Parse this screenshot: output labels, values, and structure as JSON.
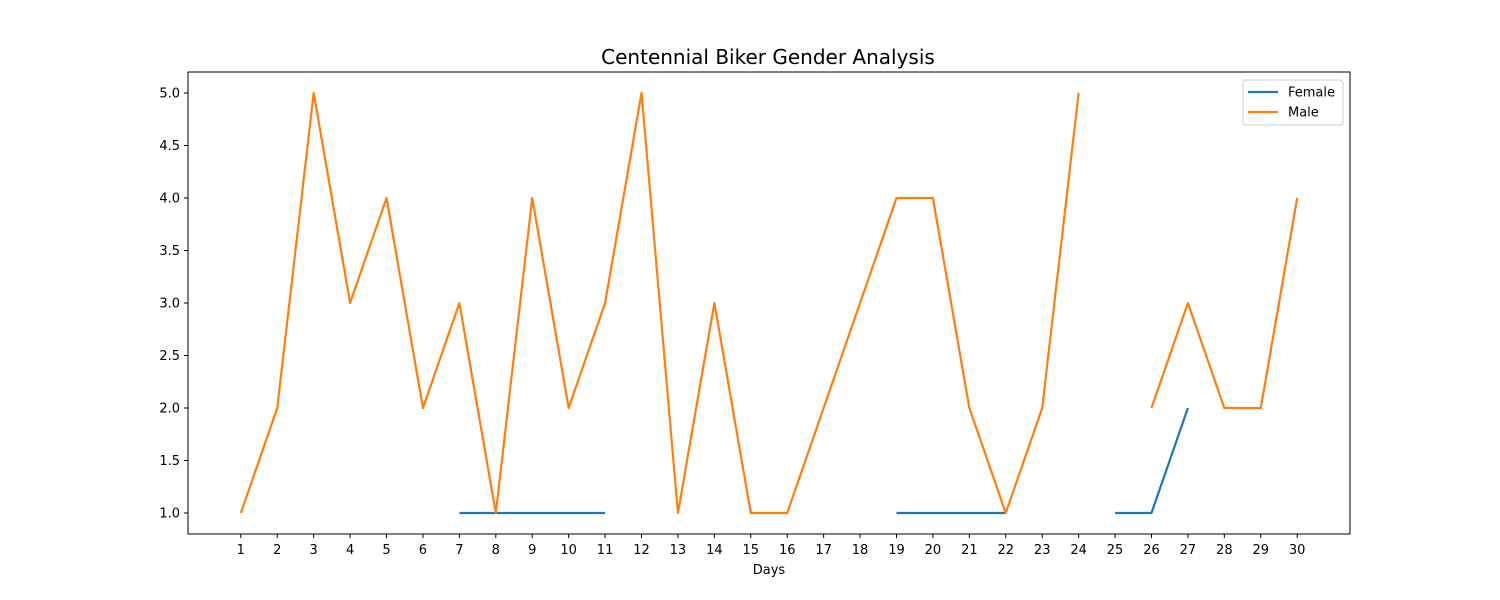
{
  "chart_data": {
    "type": "line",
    "title": "Centennial Biker Gender Analysis",
    "xlabel": "Days",
    "ylabel": "",
    "x_ticks": [
      1,
      2,
      3,
      4,
      5,
      6,
      7,
      8,
      9,
      10,
      11,
      12,
      13,
      14,
      15,
      16,
      17,
      18,
      19,
      20,
      21,
      22,
      23,
      24,
      25,
      26,
      27,
      28,
      29,
      30
    ],
    "y_ticks": [
      "1.0",
      "1.5",
      "2.0",
      "2.5",
      "3.0",
      "3.5",
      "4.0",
      "4.5",
      "5.0"
    ],
    "xlim": [
      -0.45,
      31.45
    ],
    "ylim": [
      0.8,
      5.2
    ],
    "grid": false,
    "legend_position": "top-right",
    "series": [
      {
        "name": "Female",
        "color": "#1f77b4",
        "segments": [
          [
            [
              7,
              1
            ],
            [
              8,
              1
            ],
            [
              9,
              1
            ],
            [
              10,
              1
            ],
            [
              11,
              1
            ]
          ],
          [
            [
              19,
              1
            ],
            [
              20,
              1
            ],
            [
              21,
              1
            ],
            [
              22,
              1
            ]
          ],
          [
            [
              25,
              1
            ],
            [
              26,
              1
            ],
            [
              27,
              2
            ]
          ]
        ]
      },
      {
        "name": "Male",
        "color": "#ff7f0e",
        "segments": [
          [
            [
              1,
              1
            ],
            [
              2,
              2
            ],
            [
              3,
              5
            ],
            [
              4,
              3
            ],
            [
              5,
              4
            ],
            [
              6,
              2
            ],
            [
              7,
              3
            ],
            [
              8,
              1
            ],
            [
              9,
              4
            ],
            [
              10,
              2
            ],
            [
              11,
              3
            ],
            [
              12,
              5
            ],
            [
              13,
              1
            ],
            [
              14,
              3
            ],
            [
              15,
              1
            ],
            [
              16,
              1
            ],
            [
              17,
              2
            ],
            [
              18,
              3
            ],
            [
              19,
              4
            ],
            [
              20,
              4
            ],
            [
              21,
              2
            ],
            [
              22,
              1
            ],
            [
              23,
              2
            ],
            [
              24,
              5
            ]
          ],
          [
            [
              26,
              2
            ],
            [
              27,
              3
            ],
            [
              28,
              2
            ],
            [
              29,
              2
            ],
            [
              30,
              4
            ]
          ]
        ]
      }
    ]
  }
}
